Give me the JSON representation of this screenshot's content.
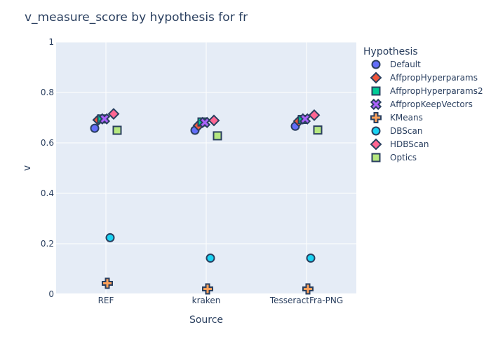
{
  "chart_data": {
    "type": "scatter",
    "title": "v_measure_score by hypothesis for fr",
    "xlabel": "Source",
    "ylabel": "v",
    "categories": [
      "REF",
      "kraken",
      "TesseractFra-PNG"
    ],
    "ylim": [
      0,
      1
    ],
    "yticks": [
      0,
      0.2,
      0.4,
      0.6,
      0.8,
      1
    ],
    "ytick_labels": [
      "0",
      "0.2",
      "0.4",
      "0.6",
      "0.8",
      "1"
    ],
    "grid": true,
    "legend_title": "Hypothesis",
    "legend_position": "right",
    "plot_background": "#e5ecf6",
    "marker_outline": "#2a3f5f",
    "series": [
      {
        "name": "Default",
        "marker": "circle",
        "color": "#636efa",
        "values": [
          0.658,
          0.65,
          0.666
        ]
      },
      {
        "name": "AffpropHyperparams",
        "marker": "diamond",
        "color": "#ef553b",
        "values": [
          0.691,
          0.669,
          0.686
        ]
      },
      {
        "name": "AffpropHyperparams2",
        "marker": "square",
        "color": "#00cc96",
        "values": [
          0.695,
          0.683,
          0.693
        ]
      },
      {
        "name": "AffpropKeepVectors",
        "marker": "x",
        "color": "#ab63fa",
        "values": [
          0.695,
          0.681,
          0.695
        ]
      },
      {
        "name": "KMeans",
        "marker": "cross",
        "color": "#ffa15a",
        "values": [
          0.043,
          0.021,
          0.021
        ]
      },
      {
        "name": "DBScan",
        "marker": "circle",
        "color": "#19d3f3",
        "values": [
          0.224,
          0.143,
          0.143
        ]
      },
      {
        "name": "HDBScan",
        "marker": "diamond",
        "color": "#ff6692",
        "values": [
          0.715,
          0.689,
          0.71
        ]
      },
      {
        "name": "Optics",
        "marker": "square",
        "color": "#b6e880",
        "values": [
          0.65,
          0.628,
          0.651
        ]
      }
    ]
  }
}
